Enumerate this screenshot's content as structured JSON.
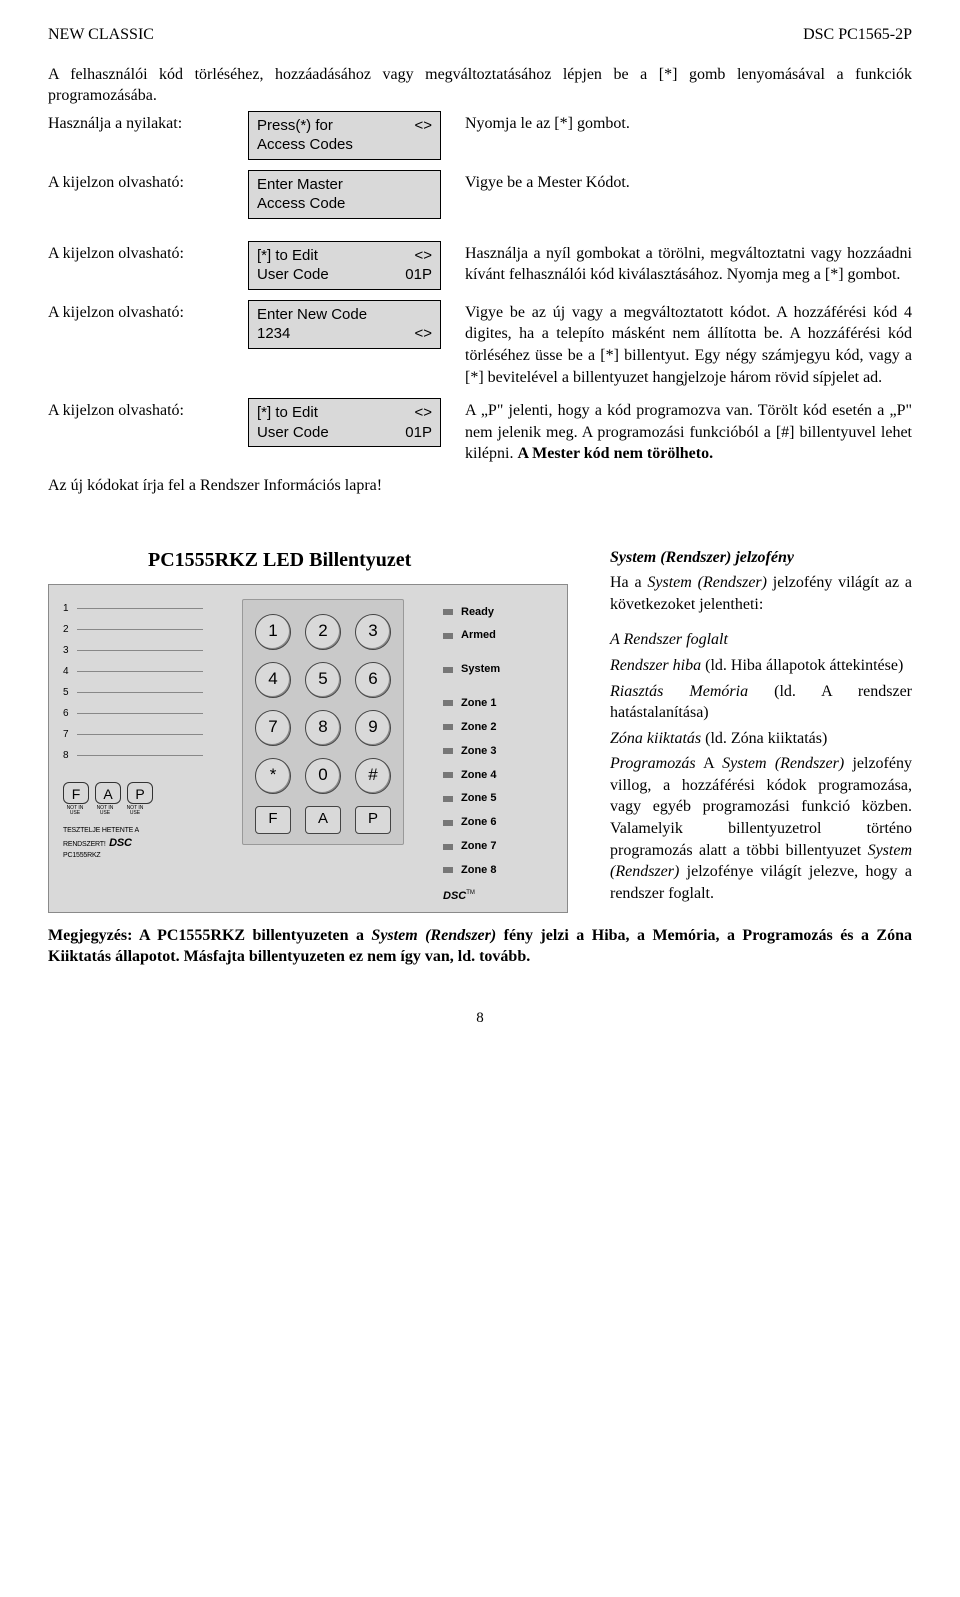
{
  "header": {
    "left": "NEW CLASSIC",
    "right": "DSC PC1565-2P"
  },
  "intro": {
    "p1": "A felhasználói kód törléséhez, hozzáadásához vagy megváltoztatásához lépjen be a [*] gomb lenyomásával a funkciók programozásába.",
    "row1_left": "Használja a nyilakat:",
    "row2_left": "A kijelzon olvasható:",
    "lcd1": {
      "l1a": "Press(*) for",
      "l1b": "<>",
      "l2": "Access Codes"
    },
    "lcd2": {
      "l1": "Enter Master",
      "l2": "Access Code"
    },
    "r1": "Nyomja le az [*] gombot.",
    "r2": "Vigye be a Mester Kódot."
  },
  "sec2": {
    "left": "A kijelzon olvasható:",
    "lcd3": {
      "l1a": "[*] to Edit",
      "l1b": "<>",
      "l2a": "User Code",
      "l2b": "01P"
    },
    "r3": "Használja a nyíl gombokat a törölni, megváltoztatni vagy hozzáadni kívánt felhasználói kód kiválasztásához. Nyomja meg a [*] gombot.",
    "lcd4": {
      "l1": "Enter New Code",
      "l2a": "1234",
      "l2b": "<>"
    },
    "r4": "Vigye be az új vagy a megváltoztatott kódot. A hozzáférési kód 4 digites, ha a telepíto másként nem állította be. A hozzáférési kód törléséhez üsse be a [*] billentyut. Egy négy számjegyu kód, vagy a [*] bevitelével a billentyuzet hangjelzoje három rövid sípjelet ad.",
    "lcd5": {
      "l1a": "[*] to Edit",
      "l1b": "<>",
      "l2a": "User Code",
      "l2b": "01P"
    },
    "r5_a": "A „P\" jelenti, hogy a kód programozva van. Törölt kód esetén a „P\" nem jelenik meg. A programozási funkcióból a [#] billentyuvel lehet kilépni. ",
    "r5_b": "A Mester kód nem törölheto.",
    "note": "Az új kódokat írja fel a Rendszer Információs lapra!"
  },
  "keypad": {
    "title": "PC1555RKZ LED Billentyuzet",
    "zone_nums": [
      "1",
      "2",
      "3",
      "4",
      "5",
      "6",
      "7",
      "8"
    ],
    "fap": [
      "F",
      "A",
      "P"
    ],
    "fap_sub": "NOT\nIN\nUSE",
    "test_line": "TESZTELJE HETENTE A RENDSZERT!",
    "model": "PC1555RKZ",
    "keys": [
      [
        "1",
        "2",
        "3"
      ],
      [
        "4",
        "5",
        "6"
      ],
      [
        "7",
        "8",
        "9"
      ],
      [
        "*",
        "0",
        "#"
      ]
    ],
    "status": {
      "top": [
        "Ready",
        "Armed"
      ],
      "sys": "System",
      "zones": [
        "Zone 1",
        "Zone 2",
        "Zone 3",
        "Zone 4",
        "Zone 5",
        "Zone 6",
        "Zone 7",
        "Zone 8"
      ],
      "brand": "DSC"
    }
  },
  "side": {
    "t1_i": "System (Rendszer)",
    "t1_r": " jelzofény",
    "p1a": "Ha a ",
    "p1b": "System (Rendszer)",
    "p1c": " jelzofény világít az a következoket jelentheti:",
    "l1": "A Rendszer foglalt",
    "l2a": "Rendszer hiba",
    "l2b": " (ld. Hiba állapotok áttekintése)",
    "l3a": "Riasztás Memória",
    "l3b": " (ld. A rendszer hatástalanítása)",
    "l4a": "Zóna kiiktatás",
    "l4b": " (ld. Zóna kiiktatás)",
    "l5a": "Programozás",
    "l5b": " A ",
    "l5c": "System (Rendszer)",
    "l5d": " jelzofény villog, a hozzáférési kódok programozása, vagy egyéb programozási funkció közben. Valamelyik billentyuzetrol történo programozás alatt a többi billentyuzet ",
    "l5e": "System (Rendszer)",
    "l5f": " jelzofénye világít jelezve, hogy a rendszer foglalt."
  },
  "footer": {
    "label": "Megjegyzés:",
    "text_a": " A PC1555RKZ billentyuzeten a ",
    "text_b": "System (Rendszer)",
    "text_c": " fény jelzi a Hiba, a Memória, a Programozás és a Zóna Kiiktatás állapotot. Másfajta billentyuzeten ez nem így van, ld. tovább."
  },
  "pagenum": "8"
}
